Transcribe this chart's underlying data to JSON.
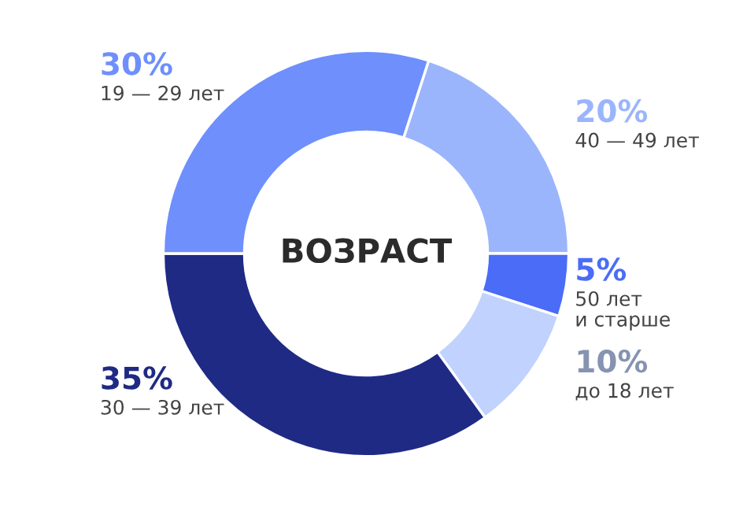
{
  "chart_data": {
    "type": "donut",
    "title": "ВОЗРАСТ",
    "categories": [
      "40 — 49 лет",
      "50 лет\nи старше",
      "до 18 лет",
      "30 — 39 лет",
      "19 — 29 лет"
    ],
    "values": [
      20,
      5,
      10,
      35,
      30
    ],
    "value_labels": [
      "20%",
      "5%",
      "10%",
      "35%",
      "30%"
    ],
    "colors": [
      "#9bb5fd",
      "#4a6cf7",
      "#c0d2fd",
      "#1f2a85",
      "#6e8ffc"
    ],
    "legend": false
  }
}
